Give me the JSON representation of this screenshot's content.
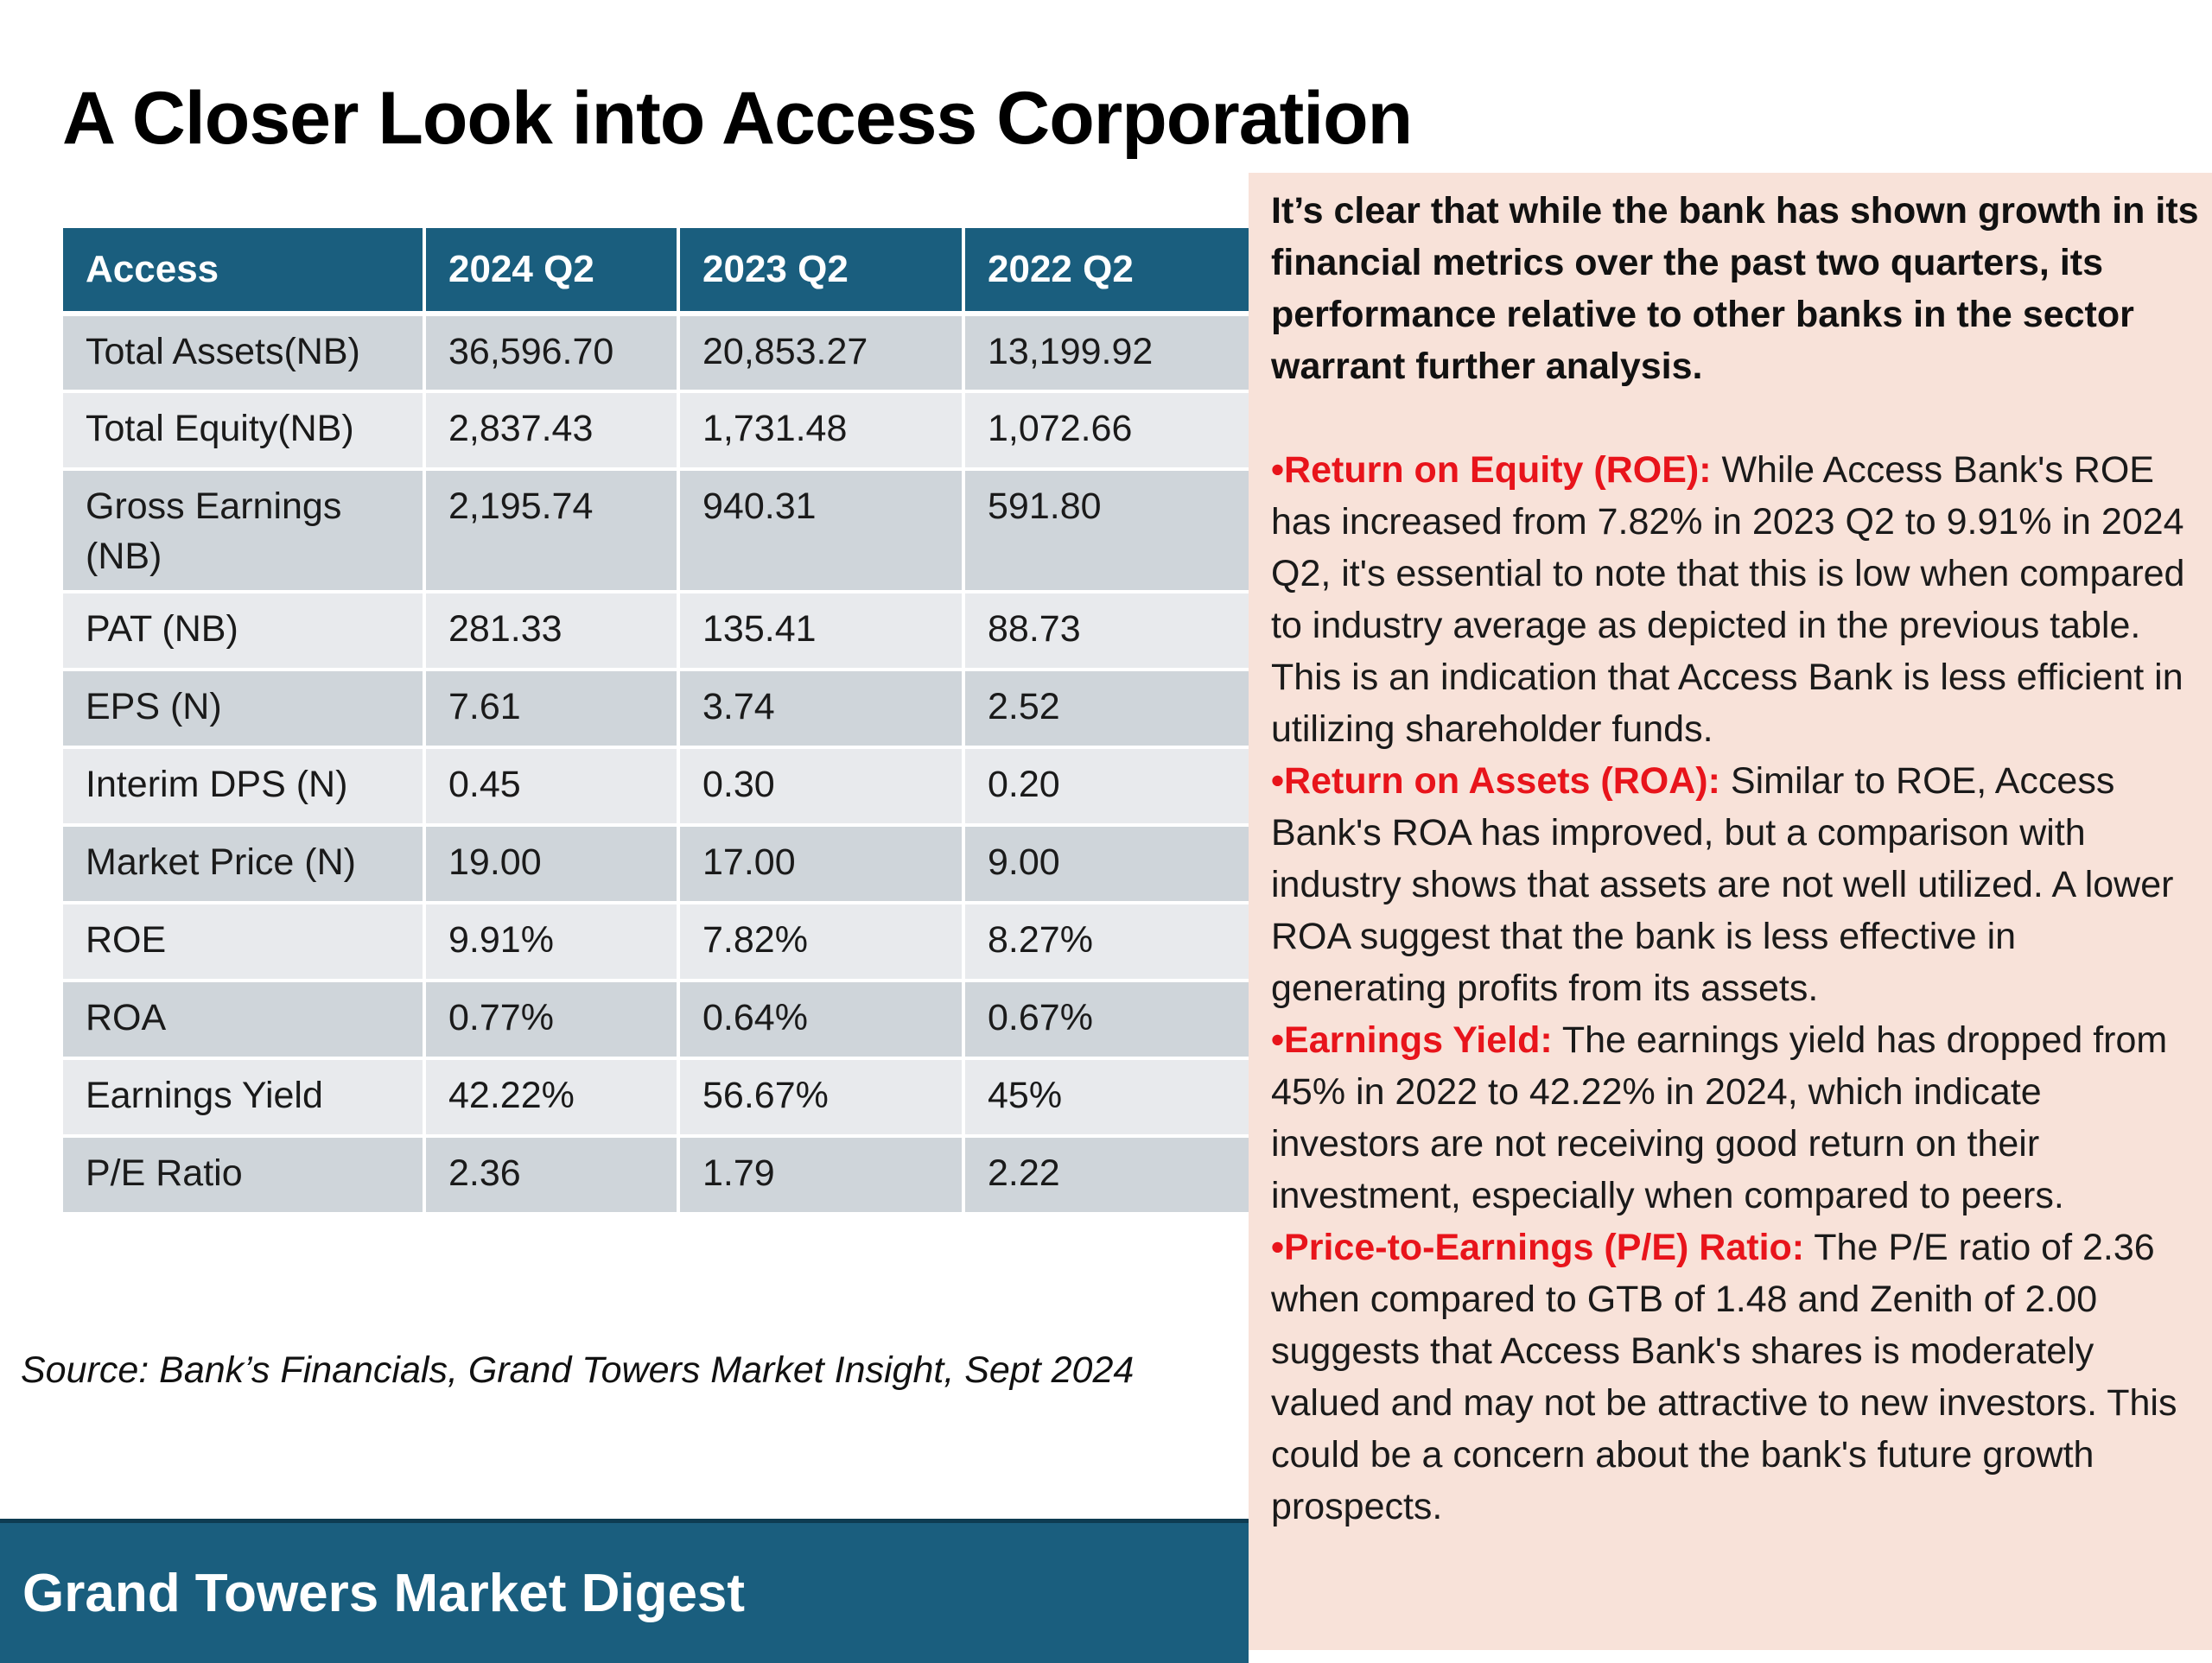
{
  "title": "A Closer Look into Access Corporation",
  "table": {
    "headers": [
      "Access",
      "2024 Q2",
      "2023 Q2",
      "2022 Q2"
    ],
    "rows": [
      [
        "Total Assets(NB)",
        "36,596.70",
        "20,853.27",
        "13,199.92"
      ],
      [
        "Total Equity(NB)",
        "2,837.43",
        "1,731.48",
        "1,072.66"
      ],
      [
        "Gross Earnings (NB)",
        "2,195.74",
        "940.31",
        "591.80"
      ],
      [
        "PAT (NB)",
        "281.33",
        "135.41",
        "88.73"
      ],
      [
        "EPS (N)",
        "7.61",
        "3.74",
        "2.52"
      ],
      [
        "Interim DPS (N)",
        "0.45",
        "0.30",
        "0.20"
      ],
      [
        "Market Price (N)",
        "19.00",
        "17.00",
        "9.00"
      ],
      [
        "ROE",
        "9.91%",
        "7.82%",
        "8.27%"
      ],
      [
        "ROA",
        "0.77%",
        "0.64%",
        "0.67%"
      ],
      [
        "Earnings Yield",
        "42.22%",
        "56.67%",
        "45%"
      ],
      [
        "P/E Ratio",
        "2.36",
        "1.79",
        "2.22"
      ]
    ]
  },
  "source": "Source: Bank’s Financials, Grand Towers Market Insight, Sept 2024",
  "footer": "Grand Towers Market Digest",
  "panel": {
    "intro": "It’s clear that while the bank has shown growth in its financial metrics over the past two quarters, its performance relative to other banks in the sector warrant further analysis.",
    "bullets": [
      {
        "lead": "•Return on Equity (ROE):",
        "text": " While Access Bank's ROE has increased from 7.82% in 2023 Q2 to 9.91% in 2024 Q2, it's essential to note that this is low when compared to industry average as depicted in the previous table. This is an indication that Access Bank is less efficient in utilizing shareholder funds."
      },
      {
        "lead": "•Return on Assets (ROA):",
        "text": " Similar to ROE, Access Bank's ROA has improved, but a comparison with industry shows that assets are not well utilized. A lower ROA suggest that the bank is less effective in generating profits from its assets."
      },
      {
        "lead": "•Earnings Yield:",
        "text": " The earnings yield has dropped from 45% in 2022 to 42.22% in 2024, which indicate investors are not receiving good return on their investment, especially when compared to peers."
      },
      {
        "lead": "•Price-to-Earnings (P/E) Ratio:",
        "text": " The P/E ratio of 2.36 when compared to GTB of  1.48 and Zenith of 2.00 suggests that Access Bank's shares is moderately valued and may not be attractive to new investors. This could be a concern about the bank's future growth prospects."
      }
    ]
  },
  "colors": {
    "header_blue": "#1a5e7e",
    "panel_bg": "#f8e2d9",
    "accent_red": "#e8141b",
    "row_dark": "#cfd5da",
    "row_light": "#e8eaed"
  }
}
